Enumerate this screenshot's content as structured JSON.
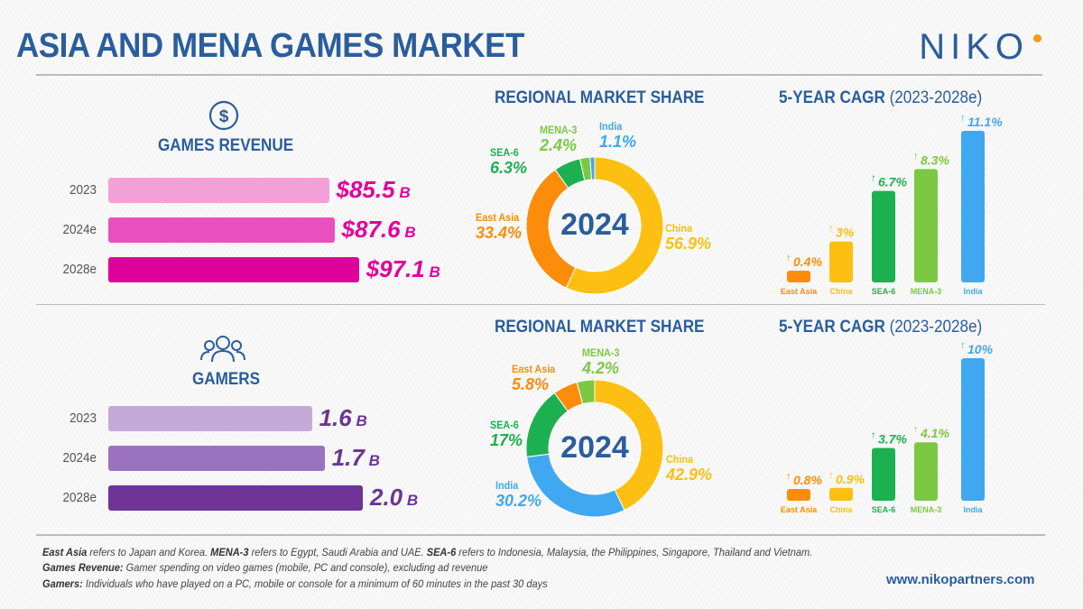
{
  "header": {
    "title": "ASIA AND MENA GAMES MARKET",
    "logo": "niko"
  },
  "colors": {
    "brand": "#2a5d9c",
    "east_asia": "#fd8c0a",
    "china": "#fdbf12",
    "sea6": "#1db050",
    "mena3": "#7cc843",
    "india": "#40a8f0"
  },
  "revenue": {
    "icon": "dollar-circle-icon",
    "title": "GAMES REVENUE",
    "bars": [
      {
        "year": "2023",
        "value": "$85.5",
        "unit": "B",
        "num": 85.5,
        "color": "#f4a0d8"
      },
      {
        "year": "2024e",
        "value": "$87.6",
        "unit": "B",
        "num": 87.6,
        "color": "#ea4fbf"
      },
      {
        "year": "2028e",
        "value": "$97.1",
        "unit": "B",
        "num": 97.1,
        "color": "#e0009a"
      }
    ],
    "value_color": "#e0009a"
  },
  "gamers": {
    "icon": "people-group-icon",
    "title": "GAMERS",
    "bars": [
      {
        "year": "2023",
        "value": "1.6",
        "unit": "B",
        "num": 1.6,
        "color": "#c4aad8"
      },
      {
        "year": "2024e",
        "value": "1.7",
        "unit": "B",
        "num": 1.7,
        "color": "#9b72bd"
      },
      {
        "year": "2028e",
        "value": "2.0",
        "unit": "B",
        "num": 2.0,
        "color": "#6f3496"
      }
    ],
    "value_color": "#6b3594"
  },
  "chart_data": [
    {
      "type": "pie",
      "title": "REGIONAL MARKET SHARE",
      "center_label": "2024",
      "donut": true,
      "slices": [
        {
          "label": "China",
          "value": 56.9,
          "text": "56.9%"
        },
        {
          "label": "East Asia",
          "value": 33.4,
          "text": "33.4%"
        },
        {
          "label": "SEA-6",
          "value": 6.3,
          "text": "6.3%"
        },
        {
          "label": "MENA-3",
          "value": 2.4,
          "text": "2.4%"
        },
        {
          "label": "India",
          "value": 1.1,
          "text": "1.1%"
        }
      ]
    },
    {
      "type": "bar",
      "title": "5-YEAR CAGR",
      "subtitle": "(2023-2028e)",
      "categories": [
        "East Asia",
        "China",
        "SEA-6",
        "MENA-3",
        "India"
      ],
      "values": [
        0.4,
        3,
        6.7,
        8.3,
        11.1
      ],
      "labels": [
        "0.4%",
        "3%",
        "6.7%",
        "8.3%",
        "11.1%"
      ]
    },
    {
      "type": "pie",
      "title": "REGIONAL MARKET SHARE",
      "center_label": "2024",
      "donut": true,
      "slices": [
        {
          "label": "China",
          "value": 42.9,
          "text": "42.9%"
        },
        {
          "label": "India",
          "value": 30.2,
          "text": "30.2%"
        },
        {
          "label": "SEA-6",
          "value": 17,
          "text": "17%"
        },
        {
          "label": "East Asia",
          "value": 5.8,
          "text": "5.8%"
        },
        {
          "label": "MENA-3",
          "value": 4.2,
          "text": "4.2%"
        }
      ]
    },
    {
      "type": "bar",
      "title": "5-YEAR CAGR",
      "subtitle": "(2023-2028e)",
      "categories": [
        "East Asia",
        "China",
        "SEA-6",
        "MENA-3",
        "India"
      ],
      "values": [
        0.8,
        0.9,
        3.7,
        4.1,
        10
      ],
      "labels": [
        "0.8%",
        "0.9%",
        "3.7%",
        "4.1%",
        "10%"
      ]
    }
  ],
  "footer": {
    "line1": [
      {
        "b": "East Asia"
      },
      {
        "t": " refers to Japan and Korea. "
      },
      {
        "b": "MENA-3"
      },
      {
        "t": " refers to Egypt, Saudi Arabia and UAE. "
      },
      {
        "b": "SEA-6"
      },
      {
        "t": " refers to Indonesia, Malaysia, the Philippines, Singapore, Thailand and Vietnam."
      }
    ],
    "line2": [
      {
        "b": "Games Revenue:"
      },
      {
        "t": " Gamer spending on video games (mobile, PC and console), excluding ad revenue"
      }
    ],
    "line3": [
      {
        "b": "Gamers:"
      },
      {
        "t": " Individuals who have played on a PC, mobile or console for a minimum of 60 minutes in the past 30 days"
      }
    ],
    "url": "www.nikopartners.com"
  }
}
